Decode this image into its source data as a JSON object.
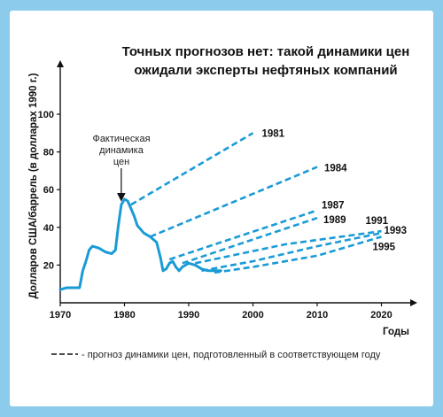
{
  "colors": {
    "background": "#8ccbec",
    "panel": "#ffffff",
    "series": "#1a9bd6",
    "axis": "#111111"
  },
  "chart_data": {
    "type": "line",
    "title_lines": [
      "Точных прогнозов нет: такой динамики цен",
      "ожидали эксперты нефтяных компаний"
    ],
    "xlabel": "Годы",
    "ylabel": "Долларов США/баррель (в долларах 1990 г.)",
    "xlim": [
      1970,
      2024
    ],
    "ylim": [
      0,
      110
    ],
    "x_ticks": [
      1970,
      1980,
      1990,
      2000,
      2010,
      2020
    ],
    "y_ticks": [
      20,
      40,
      60,
      80,
      100
    ],
    "grid": false,
    "annotation": {
      "text_lines": [
        "Фактическая",
        "динамика",
        "цен"
      ],
      "points_to": {
        "x": 1979.5,
        "y": 52
      }
    },
    "legend": {
      "placement": "bottom",
      "text": "- прогноз динамики цен, подготовленный в соответствующем году"
    },
    "actual": {
      "name": "Фактическая динамика цен",
      "x": [
        1970,
        1971,
        1972,
        1973,
        1973.5,
        1974,
        1974.5,
        1975,
        1976,
        1977,
        1978,
        1978.6,
        1979,
        1979.5,
        1980,
        1980.5,
        1981,
        1981.5,
        1982,
        1983,
        1984,
        1985,
        1985.6,
        1986,
        1986.5,
        1987,
        1987.5,
        1988,
        1988.5,
        1989,
        1990,
        1991,
        1992,
        1993,
        1994,
        1995
      ],
      "y": [
        7,
        8,
        8,
        8,
        17,
        22,
        28,
        30,
        29,
        27,
        26,
        28,
        40,
        52,
        55,
        54,
        50,
        46,
        41,
        37,
        35,
        32,
        24,
        17,
        18,
        21,
        22,
        19,
        17,
        19,
        21,
        20,
        18,
        17,
        17,
        17
      ]
    },
    "forecasts": [
      {
        "name": "1981",
        "x": [
          1981,
          2000
        ],
        "y": [
          52,
          90
        ]
      },
      {
        "name": "1984",
        "x": [
          1984,
          2010
        ],
        "y": [
          35,
          72
        ]
      },
      {
        "name": "1987",
        "x": [
          1987,
          2010
        ],
        "y": [
          23,
          49
        ]
      },
      {
        "name": "1989",
        "x": [
          1989,
          2010
        ],
        "y": [
          21,
          45
        ]
      },
      {
        "name": "1991",
        "x": [
          1991,
          2005,
          2020
        ],
        "y": [
          21,
          31,
          38
        ]
      },
      {
        "name": "1993",
        "x": [
          1992,
          2000,
          2010,
          2020
        ],
        "y": [
          17,
          22,
          30,
          37
        ]
      },
      {
        "name": "1995",
        "x": [
          1994,
          2000,
          2010,
          2020
        ],
        "y": [
          16,
          19,
          25,
          35
        ]
      }
    ]
  }
}
